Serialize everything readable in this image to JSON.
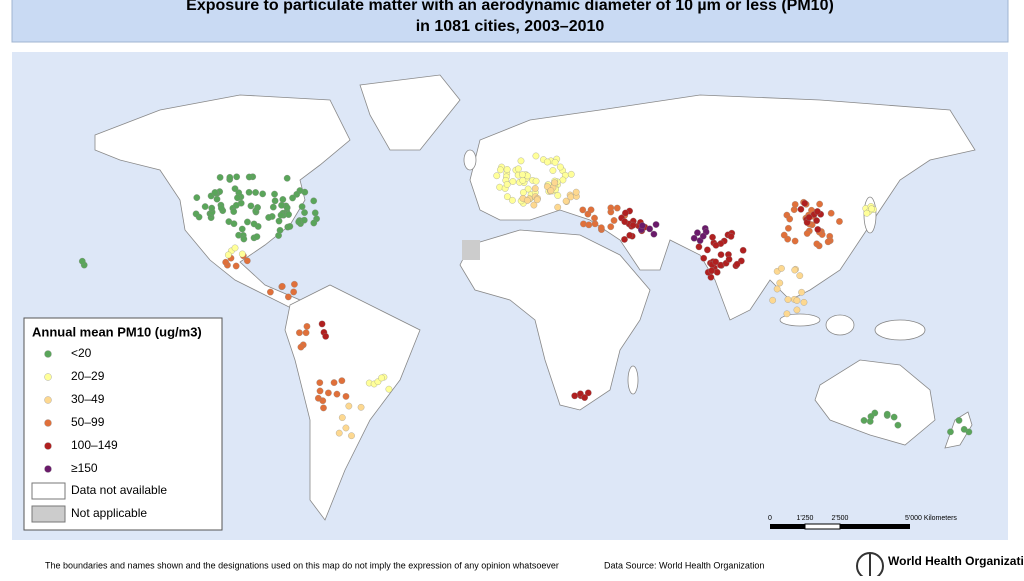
{
  "header": {
    "title_line1": "Exposure to particulate matter with an aerodynamic diameter of 10 µm or less (PM10)",
    "title_line2": "in 1081 cities, 2003–2010"
  },
  "legend": {
    "title": "Annual mean PM10 (ug/m3)",
    "classes": [
      {
        "label": "<20",
        "color": "#5aa55a"
      },
      {
        "label": "20–29",
        "color": "#ffff99"
      },
      {
        "label": "30–49",
        "color": "#fdd890"
      },
      {
        "label": "50–99",
        "color": "#e0703a"
      },
      {
        "label": "100–149",
        "color": "#b02020"
      },
      {
        "label": "≥150",
        "color": "#6a1a6a"
      }
    ],
    "boxes": [
      {
        "label": "Data not available",
        "color": "#ffffff"
      },
      {
        "label": "Not applicable",
        "color": "#cccccc"
      }
    ]
  },
  "scale": {
    "labels": [
      "0",
      "1'250",
      "2'500",
      "5'000 Kilometers"
    ]
  },
  "footer": {
    "disclaimer": "The boundaries and names shown and the designations used on this map do not imply the expression of any opinion whatsoever",
    "source": "Data Source: World Health Organization",
    "organization": "World Health Organization"
  }
}
